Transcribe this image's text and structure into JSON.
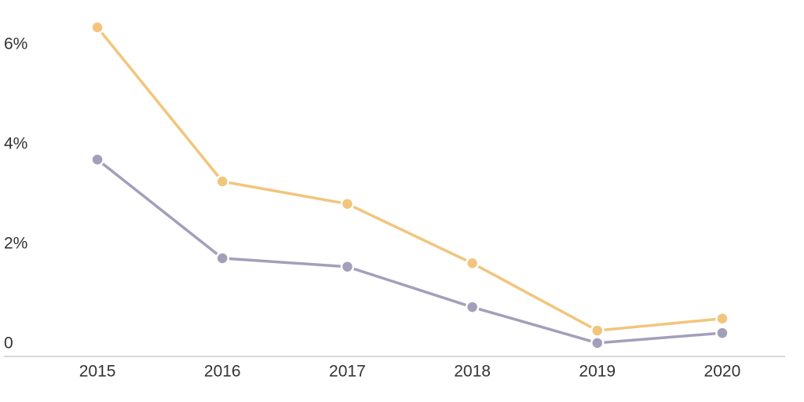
{
  "chart_data": {
    "type": "line",
    "categories": [
      "2015",
      "2016",
      "2017",
      "2018",
      "2019",
      "2020"
    ],
    "series": [
      {
        "color": "#f2c57c",
        "values": [
          6.6,
          3.51,
          3.06,
          1.87,
          0.52,
          0.76
        ]
      },
      {
        "color": "#a39fbb",
        "values": [
          3.95,
          1.97,
          1.8,
          0.99,
          0.27,
          0.47
        ]
      }
    ],
    "ylim": [
      0,
      7.15
    ],
    "yticks": [
      0,
      {
        "value": 2,
        "label": "2%"
      },
      {
        "value": 4,
        "label": "4%"
      },
      {
        "value": 6,
        "label": "6%"
      }
    ],
    "grid": false
  }
}
